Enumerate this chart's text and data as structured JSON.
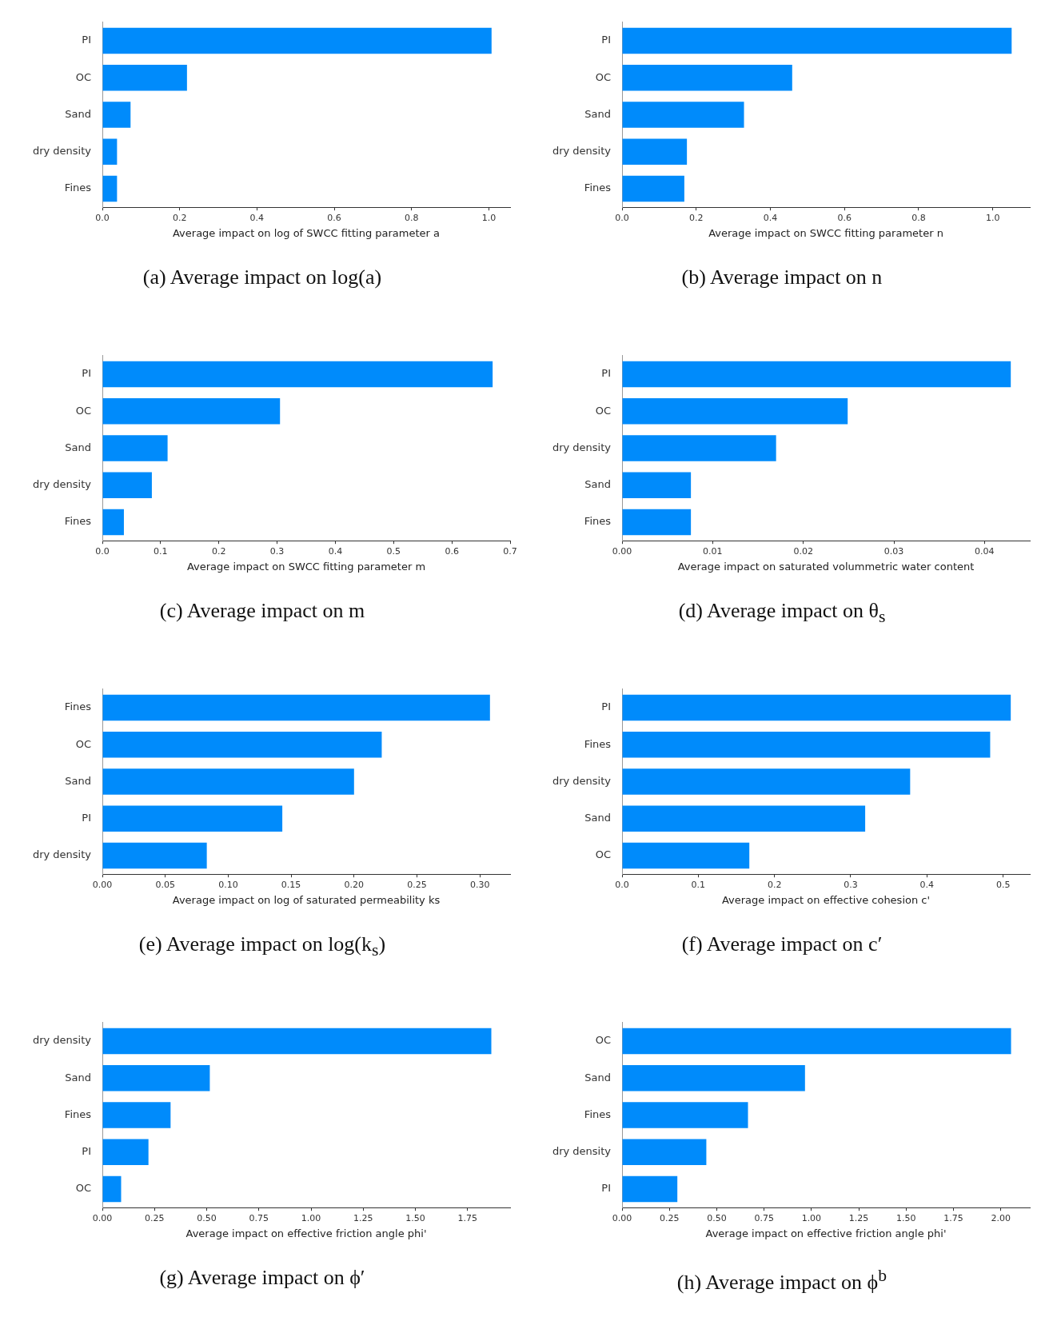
{
  "chart_data": [
    {
      "type": "bar",
      "orientation": "horizontal",
      "title": "(a) Average impact on log(a)",
      "xlabel": "Average impact on log of SWCC fitting parameter a",
      "categories": [
        "PI",
        "OC",
        "Sand",
        "dry density",
        "Fines"
      ],
      "values": [
        1.007,
        0.219,
        0.073,
        0.038,
        0.038
      ],
      "color": "#008bfb",
      "xlim": [
        0,
        1.055
      ],
      "xticks": [
        {
          "value": 0,
          "label": "0.0"
        },
        {
          "value": 0.2,
          "label": "0.2"
        },
        {
          "value": 0.4,
          "label": "0.4"
        },
        {
          "value": 0.6,
          "label": "0.6"
        },
        {
          "value": 0.8,
          "label": "0.8"
        },
        {
          "value": 1,
          "label": "1.0"
        }
      ]
    },
    {
      "type": "bar",
      "orientation": "horizontal",
      "title": "(b) Average impact on n",
      "xlabel": "Average impact on SWCC fitting parameter n",
      "categories": [
        "PI",
        "OC",
        "Sand",
        "dry density",
        "Fines"
      ],
      "values": [
        1.051,
        0.459,
        0.329,
        0.175,
        0.168
      ],
      "color": "#008bfb",
      "xlim": [
        0,
        1.1
      ],
      "xticks": [
        {
          "value": 0,
          "label": "0.0"
        },
        {
          "value": 0.2,
          "label": "0.2"
        },
        {
          "value": 0.4,
          "label": "0.4"
        },
        {
          "value": 0.6,
          "label": "0.6"
        },
        {
          "value": 0.8,
          "label": "0.8"
        },
        {
          "value": 1,
          "label": "1.0"
        }
      ]
    },
    {
      "type": "bar",
      "orientation": "horizontal",
      "title": "(c) Average impact on m",
      "xlabel": "Average impact on SWCC fitting parameter m",
      "categories": [
        "PI",
        "OC",
        "Sand",
        "dry density",
        "Fines"
      ],
      "values": [
        0.67,
        0.305,
        0.112,
        0.085,
        0.037
      ],
      "color": "#008bfb",
      "xlim": [
        0,
        0.7
      ],
      "xticks": [
        {
          "value": 0,
          "label": "0.0"
        },
        {
          "value": 0.1,
          "label": "0.1"
        },
        {
          "value": 0.2,
          "label": "0.2"
        },
        {
          "value": 0.3,
          "label": "0.3"
        },
        {
          "value": 0.4,
          "label": "0.4"
        },
        {
          "value": 0.5,
          "label": "0.5"
        },
        {
          "value": 0.6,
          "label": "0.6"
        },
        {
          "value": 0.7,
          "label": "0.7"
        }
      ]
    },
    {
      "type": "bar",
      "orientation": "horizontal",
      "title": "(d) Average impact on θ$_{s}$",
      "xlabel": "Average impact on saturated volummetric water content",
      "categories": [
        "PI",
        "OC",
        "dry density",
        "Sand",
        "Fines"
      ],
      "values": [
        0.0429,
        0.0249,
        0.017,
        0.0076,
        0.0076
      ],
      "color": "#008bfb",
      "xlim": [
        0,
        0.045
      ],
      "xticks": [
        {
          "value": 0,
          "label": "0.00"
        },
        {
          "value": 0.01,
          "label": "0.01"
        },
        {
          "value": 0.02,
          "label": "0.02"
        },
        {
          "value": 0.03,
          "label": "0.03"
        },
        {
          "value": 0.04,
          "label": "0.04"
        }
      ]
    },
    {
      "type": "bar",
      "orientation": "horizontal",
      "title": "(e) Average impact on log(k$_{s}$)",
      "xlabel": "Average impact on log of saturated permeability ks",
      "categories": [
        "Fines",
        "OC",
        "Sand",
        "PI",
        "dry density"
      ],
      "values": [
        0.308,
        0.222,
        0.2,
        0.143,
        0.083
      ],
      "color": "#008bfb",
      "xlim": [
        0,
        0.324
      ],
      "xticks": [
        {
          "value": 0,
          "label": "0.00"
        },
        {
          "value": 0.05,
          "label": "0.05"
        },
        {
          "value": 0.1,
          "label": "0.10"
        },
        {
          "value": 0.15,
          "label": "0.15"
        },
        {
          "value": 0.2,
          "label": "0.20"
        },
        {
          "value": 0.25,
          "label": "0.25"
        },
        {
          "value": 0.3,
          "label": "0.30"
        }
      ]
    },
    {
      "type": "bar",
      "orientation": "horizontal",
      "title": "(f) Average impact on c′",
      "xlabel": "Average impact on effective cohesion c'",
      "categories": [
        "PI",
        "Fines",
        "dry density",
        "Sand",
        "OC"
      ],
      "values": [
        0.51,
        0.483,
        0.378,
        0.319,
        0.167
      ],
      "color": "#008bfb",
      "xlim": [
        0,
        0.535
      ],
      "xticks": [
        {
          "value": 0,
          "label": "0.0"
        },
        {
          "value": 0.1,
          "label": "0.1"
        },
        {
          "value": 0.2,
          "label": "0.2"
        },
        {
          "value": 0.3,
          "label": "0.3"
        },
        {
          "value": 0.4,
          "label": "0.4"
        },
        {
          "value": 0.5,
          "label": "0.5"
        }
      ]
    },
    {
      "type": "bar",
      "orientation": "horizontal",
      "title": "(g) Average impact on ϕ′",
      "xlabel": "Average impact on effective friction angle phi'",
      "categories": [
        "dry density",
        "Sand",
        "Fines",
        "PI",
        "OC"
      ],
      "values": [
        1.864,
        0.515,
        0.327,
        0.221,
        0.09
      ],
      "color": "#008bfb",
      "xlim": [
        0,
        1.954
      ],
      "xticks": [
        {
          "value": 0,
          "label": "0.00"
        },
        {
          "value": 0.25,
          "label": "0.25"
        },
        {
          "value": 0.5,
          "label": "0.50"
        },
        {
          "value": 0.75,
          "label": "0.75"
        },
        {
          "value": 1,
          "label": "1.00"
        },
        {
          "value": 1.25,
          "label": "1.25"
        },
        {
          "value": 1.5,
          "label": "1.50"
        },
        {
          "value": 1.75,
          "label": "1.75"
        }
      ]
    },
    {
      "type": "bar",
      "orientation": "horizontal",
      "title": "(h) Average impact on ϕ$^{b}$",
      "xlabel": "Average impact on effective friction angle phi'",
      "categories": [
        "OC",
        "Sand",
        "Fines",
        "dry density",
        "PI"
      ],
      "values": [
        2.054,
        0.966,
        0.665,
        0.445,
        0.292
      ],
      "color": "#008bfb",
      "xlim": [
        0,
        2.153
      ],
      "xticks": [
        {
          "value": 0,
          "label": "0.00"
        },
        {
          "value": 0.25,
          "label": "0.25"
        },
        {
          "value": 0.5,
          "label": "0.50"
        },
        {
          "value": 0.75,
          "label": "0.75"
        },
        {
          "value": 1,
          "label": "1.00"
        },
        {
          "value": 1.25,
          "label": "1.25"
        },
        {
          "value": 1.5,
          "label": "1.50"
        },
        {
          "value": 1.75,
          "label": "1.75"
        },
        {
          "value": 2,
          "label": "2.00"
        }
      ]
    }
  ]
}
